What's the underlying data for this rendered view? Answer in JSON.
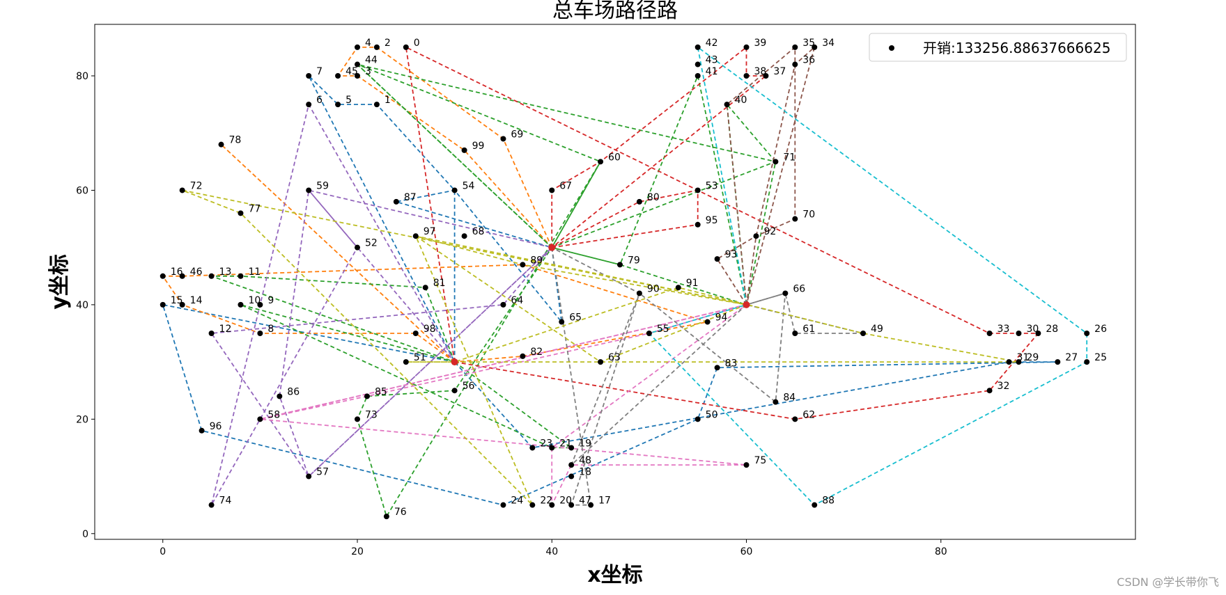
{
  "watermark": "CSDN @学长带你飞",
  "chart_data": {
    "type": "scatter",
    "title": "总车场路径路",
    "xlabel": "x坐标",
    "ylabel": "y坐标",
    "xlim": [
      -7,
      100
    ],
    "ylim": [
      -1,
      89
    ],
    "xticks": [
      0,
      20,
      40,
      60,
      80
    ],
    "yticks": [
      0,
      20,
      40,
      60,
      80
    ],
    "grid": false,
    "legend": {
      "position": "top-right",
      "label": "开销:133256.88637666625"
    },
    "point_color": "#000000",
    "depots": [
      [
        30,
        30
      ],
      [
        40,
        50
      ],
      [
        60,
        40
      ]
    ],
    "depot_color": "#d62728",
    "points": [
      {
        "id": 0,
        "x": 25,
        "y": 85
      },
      {
        "id": 1,
        "x": 22,
        "y": 75
      },
      {
        "id": 2,
        "x": 22,
        "y": 85
      },
      {
        "id": 3,
        "x": 20,
        "y": 80
      },
      {
        "id": 4,
        "x": 20,
        "y": 85
      },
      {
        "id": 5,
        "x": 18,
        "y": 75
      },
      {
        "id": 6,
        "x": 15,
        "y": 75
      },
      {
        "id": 7,
        "x": 15,
        "y": 80
      },
      {
        "id": 8,
        "x": 10,
        "y": 35
      },
      {
        "id": 9,
        "x": 10,
        "y": 40
      },
      {
        "id": 10,
        "x": 8,
        "y": 40
      },
      {
        "id": 11,
        "x": 8,
        "y": 45
      },
      {
        "id": 12,
        "x": 5,
        "y": 35
      },
      {
        "id": 13,
        "x": 5,
        "y": 45
      },
      {
        "id": 14,
        "x": 2,
        "y": 40
      },
      {
        "id": 15,
        "x": 0,
        "y": 40
      },
      {
        "id": 16,
        "x": 0,
        "y": 45
      },
      {
        "id": 17,
        "x": 44,
        "y": 5
      },
      {
        "id": 18,
        "x": 42,
        "y": 10
      },
      {
        "id": 19,
        "x": 42,
        "y": 15
      },
      {
        "id": 20,
        "x": 40,
        "y": 5
      },
      {
        "id": 21,
        "x": 40,
        "y": 15
      },
      {
        "id": 22,
        "x": 38,
        "y": 5
      },
      {
        "id": 23,
        "x": 38,
        "y": 15
      },
      {
        "id": 24,
        "x": 35,
        "y": 5
      },
      {
        "id": 25,
        "x": 95,
        "y": 30
      },
      {
        "id": 26,
        "x": 95,
        "y": 35
      },
      {
        "id": 27,
        "x": 92,
        "y": 30
      },
      {
        "id": 28,
        "x": 90,
        "y": 35
      },
      {
        "id": 29,
        "x": 88,
        "y": 30
      },
      {
        "id": 30,
        "x": 88,
        "y": 35
      },
      {
        "id": 31,
        "x": 87,
        "y": 30
      },
      {
        "id": 32,
        "x": 85,
        "y": 25
      },
      {
        "id": 33,
        "x": 85,
        "y": 35
      },
      {
        "id": 34,
        "x": 67,
        "y": 85
      },
      {
        "id": 35,
        "x": 65,
        "y": 85
      },
      {
        "id": 36,
        "x": 65,
        "y": 82
      },
      {
        "id": 37,
        "x": 62,
        "y": 80
      },
      {
        "id": 38,
        "x": 60,
        "y": 80
      },
      {
        "id": 39,
        "x": 60,
        "y": 85
      },
      {
        "id": 40,
        "x": 58,
        "y": 75
      },
      {
        "id": 41,
        "x": 55,
        "y": 80
      },
      {
        "id": 42,
        "x": 55,
        "y": 85
      },
      {
        "id": 43,
        "x": 55,
        "y": 82
      },
      {
        "id": 44,
        "x": 20,
        "y": 82
      },
      {
        "id": 45,
        "x": 18,
        "y": 80
      },
      {
        "id": 46,
        "x": 2,
        "y": 45
      },
      {
        "id": 47,
        "x": 42,
        "y": 5
      },
      {
        "id": 48,
        "x": 42,
        "y": 12
      },
      {
        "id": 49,
        "x": 72,
        "y": 35
      },
      {
        "id": 50,
        "x": 55,
        "y": 20
      },
      {
        "id": 51,
        "x": 25,
        "y": 30
      },
      {
        "id": 52,
        "x": 20,
        "y": 50
      },
      {
        "id": 53,
        "x": 55,
        "y": 60
      },
      {
        "id": 54,
        "x": 30,
        "y": 60
      },
      {
        "id": 55,
        "x": 50,
        "y": 35
      },
      {
        "id": 56,
        "x": 30,
        "y": 25
      },
      {
        "id": 57,
        "x": 15,
        "y": 10
      },
      {
        "id": 58,
        "x": 10,
        "y": 20
      },
      {
        "id": 59,
        "x": 15,
        "y": 60
      },
      {
        "id": 60,
        "x": 45,
        "y": 65
      },
      {
        "id": 61,
        "x": 65,
        "y": 35
      },
      {
        "id": 62,
        "x": 65,
        "y": 20
      },
      {
        "id": 63,
        "x": 45,
        "y": 30
      },
      {
        "id": 64,
        "x": 35,
        "y": 40
      },
      {
        "id": 65,
        "x": 41,
        "y": 37
      },
      {
        "id": 66,
        "x": 64,
        "y": 42
      },
      {
        "id": 67,
        "x": 40,
        "y": 60
      },
      {
        "id": 68,
        "x": 31,
        "y": 52
      },
      {
        "id": 69,
        "x": 35,
        "y": 69
      },
      {
        "id": 70,
        "x": 65,
        "y": 55
      },
      {
        "id": 71,
        "x": 63,
        "y": 65
      },
      {
        "id": 72,
        "x": 2,
        "y": 60
      },
      {
        "id": 73,
        "x": 20,
        "y": 20
      },
      {
        "id": 74,
        "x": 5,
        "y": 5
      },
      {
        "id": 75,
        "x": 60,
        "y": 12
      },
      {
        "id": 76,
        "x": 23,
        "y": 3
      },
      {
        "id": 77,
        "x": 8,
        "y": 56
      },
      {
        "id": 78,
        "x": 6,
        "y": 68
      },
      {
        "id": 79,
        "x": 47,
        "y": 47
      },
      {
        "id": 80,
        "x": 49,
        "y": 58
      },
      {
        "id": 81,
        "x": 27,
        "y": 43
      },
      {
        "id": 82,
        "x": 37,
        "y": 31
      },
      {
        "id": 83,
        "x": 57,
        "y": 29
      },
      {
        "id": 84,
        "x": 63,
        "y": 23
      },
      {
        "id": 85,
        "x": 21,
        "y": 24
      },
      {
        "id": 86,
        "x": 12,
        "y": 24
      },
      {
        "id": 87,
        "x": 24,
        "y": 58
      },
      {
        "id": 88,
        "x": 67,
        "y": 5
      },
      {
        "id": 89,
        "x": 37,
        "y": 47
      },
      {
        "id": 90,
        "x": 49,
        "y": 42
      },
      {
        "id": 91,
        "x": 53,
        "y": 43
      },
      {
        "id": 92,
        "x": 61,
        "y": 52
      },
      {
        "id": 93,
        "x": 57,
        "y": 48
      },
      {
        "id": 94,
        "x": 56,
        "y": 37
      },
      {
        "id": 95,
        "x": 55,
        "y": 54
      },
      {
        "id": 96,
        "x": 4,
        "y": 18
      },
      {
        "id": 97,
        "x": 26,
        "y": 52
      },
      {
        "id": 98,
        "x": 26,
        "y": 35
      },
      {
        "id": 99,
        "x": 31,
        "y": 67
      }
    ],
    "routes": [
      {
        "color": "#1f77b4",
        "depot": [
          40,
          50
        ],
        "stops": [
          65,
          54,
          87
        ]
      },
      {
        "color": "#1f77b4",
        "depot": [
          30,
          30
        ],
        "stops": [
          15,
          96,
          24,
          50,
          83,
          27,
          31,
          23
        ]
      },
      {
        "color": "#1f77b4",
        "depot": [
          30,
          30
        ],
        "stops": [
          54,
          1,
          5,
          7
        ]
      },
      {
        "color": "#ff7f0e",
        "depot": [
          30,
          30
        ],
        "stops": [
          78
        ]
      },
      {
        "color": "#ff7f0e",
        "depot": [
          40,
          50
        ],
        "stops": [
          69,
          2,
          4,
          45,
          3,
          99
        ]
      },
      {
        "color": "#ff7f0e",
        "depot": [
          30,
          30
        ],
        "stops": [
          98,
          8,
          14,
          16,
          46,
          89,
          94,
          82
        ]
      },
      {
        "color": "#2ca02c",
        "depot": [
          30,
          30
        ],
        "stops": [
          81,
          11,
          13
        ]
      },
      {
        "color": "#2ca02c",
        "depot": [
          40,
          50
        ],
        "stops": [
          60,
          76,
          73,
          85,
          56
        ]
      },
      {
        "color": "#2ca02c",
        "depot": [
          40,
          50
        ],
        "stops": [
          79
        ]
      },
      {
        "color": "#2ca02c",
        "depot": [
          60,
          40
        ],
        "stops": [
          41,
          79
        ]
      },
      {
        "color": "#2ca02c",
        "depot": [
          30,
          30
        ],
        "stops": [
          10,
          21,
          19
        ]
      },
      {
        "color": "#2ca02c",
        "depot": [
          40,
          50
        ],
        "stops": [
          44,
          60
        ]
      },
      {
        "color": "#2ca02c",
        "depot": [
          60,
          40
        ],
        "stops": [
          71,
          40
        ]
      },
      {
        "color": "#2ca02c",
        "depot": [
          40,
          50
        ],
        "stops": [
          71,
          44
        ]
      },
      {
        "color": "#d62728",
        "depot": [
          30,
          30
        ],
        "stops": [
          0,
          33,
          30,
          28,
          32,
          62
        ]
      },
      {
        "color": "#d62728",
        "depot": [
          40,
          50
        ],
        "stops": [
          67,
          60,
          39,
          38,
          37
        ]
      },
      {
        "color": "#d62728",
        "depot": [
          40,
          50
        ],
        "stops": [
          95,
          53,
          80
        ]
      },
      {
        "color": "#9467bd",
        "depot": [
          30,
          30
        ],
        "stops": [
          6,
          74,
          52,
          59
        ]
      },
      {
        "color": "#9467bd",
        "depot": [
          40,
          50
        ],
        "stops": [
          64,
          12,
          57,
          86,
          59
        ]
      },
      {
        "color": "#9467bd",
        "depot": [
          40,
          50
        ],
        "stops": [
          57
        ]
      },
      {
        "color": "#8c564b",
        "depot": [
          60,
          40
        ],
        "stops": [
          93,
          92,
          70,
          36,
          35,
          40
        ]
      },
      {
        "color": "#8c564b",
        "depot": [
          60,
          40
        ],
        "stops": [
          92,
          36,
          34
        ]
      },
      {
        "color": "#e377c2",
        "depot": [
          60,
          40
        ],
        "stops": [
          58,
          75,
          48,
          20,
          21
        ]
      },
      {
        "color": "#e377c2",
        "depot": [
          60,
          40
        ],
        "stops": [
          55,
          85,
          58
        ]
      },
      {
        "color": "#7f7f7f",
        "depot": [
          60,
          40
        ],
        "stops": [
          66,
          61,
          49
        ]
      },
      {
        "color": "#7f7f7f",
        "depot": [
          60,
          40
        ],
        "stops": [
          48,
          90,
          84,
          66
        ]
      },
      {
        "color": "#7f7f7f",
        "depot": [
          40,
          50
        ],
        "stops": [
          17,
          47,
          90
        ]
      },
      {
        "color": "#bcbd22",
        "depot": [
          60,
          40
        ],
        "stops": [
          72,
          77,
          22,
          97,
          63
        ]
      },
      {
        "color": "#bcbd22",
        "depot": [
          30,
          30
        ],
        "stops": [
          51,
          29,
          49,
          91
        ]
      },
      {
        "color": "#bcbd22",
        "depot": [
          60,
          40
        ],
        "stops": [
          97,
          89
        ]
      },
      {
        "color": "#17becf",
        "depot": [
          60,
          40
        ],
        "stops": [
          42,
          26,
          25,
          88,
          55
        ]
      }
    ]
  }
}
